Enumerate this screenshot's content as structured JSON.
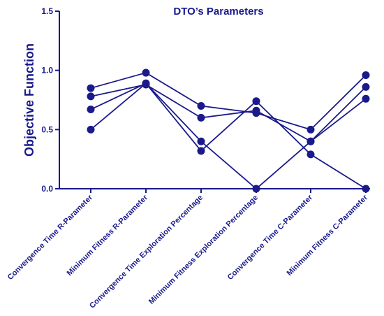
{
  "chart_data": {
    "type": "line",
    "title": "DTO’s Parameters",
    "xlabel": "",
    "ylabel": "Objective Function",
    "ylim": [
      0.0,
      1.5
    ],
    "yticks": [
      "0.0",
      "0.5",
      "1.0",
      "1.5"
    ],
    "categories": [
      "Convergence Time R-Parameter",
      "Minimum Fitness R-Parameter",
      "Convergence Time Exploration Percentage",
      "Minimum Fitness Exploration Percentage",
      "Convergence Time C-Parameter",
      "Minimum Fitness C-Parameter"
    ],
    "series": [
      {
        "values": [
          0.85,
          0.98,
          0.7,
          0.64,
          0.5,
          0.96
        ]
      },
      {
        "values": [
          0.78,
          0.88,
          0.6,
          0.66,
          0.4,
          0.86
        ]
      },
      {
        "values": [
          0.67,
          0.89,
          0.4,
          0.0,
          0.4,
          0.76
        ]
      },
      {
        "values": [
          0.5,
          0.89,
          0.32,
          0.74,
          0.29,
          0.0
        ]
      }
    ],
    "grid": false,
    "legend": "none",
    "color": "#1a1a8c"
  }
}
